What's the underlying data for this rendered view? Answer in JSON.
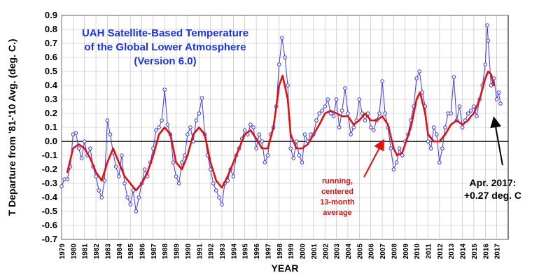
{
  "chart_data": {
    "type": "line",
    "title_lines": [
      "UAH Satellite-Based Temperature",
      "of the Global Lower Atmosphere",
      "(Version 6.0)"
    ],
    "ylabel": "T Departure from '81-'10 Avg. (deg. C.)",
    "xlabel": "YEAR",
    "ylim": [
      -0.7,
      0.9
    ],
    "yticks": [
      "0.9",
      "0.8",
      "0.7",
      "0.6",
      "0.5",
      "0.4",
      "0.3",
      "0.2",
      "0.1",
      "0.0",
      "-0.1",
      "-0.2",
      "-0.3",
      "-0.4",
      "-0.5",
      "-0.6",
      "-0.7"
    ],
    "xlim": [
      1979.0,
      2018.0
    ],
    "xticks": [
      "1979",
      "1980",
      "1981",
      "1982",
      "1983",
      "1984",
      "1985",
      "1986",
      "1987",
      "1988",
      "1989",
      "1990",
      "1991",
      "1992",
      "1993",
      "1994",
      "1995",
      "1996",
      "1997",
      "1998",
      "1999",
      "2000",
      "2001",
      "2002",
      "2003",
      "2004",
      "2005",
      "2006",
      "2007",
      "2008",
      "2009",
      "2010",
      "2011",
      "2012",
      "2013",
      "2014",
      "2015",
      "2016",
      "2017"
    ],
    "grid": true,
    "colors": {
      "monthly": "#3a3aee",
      "running": "#e01010",
      "title": "#1a33e6"
    },
    "series": [
      {
        "name": "",
        "values": [
          [
            1979.0,
            -0.32
          ],
          [
            1979.25,
            -0.27
          ],
          [
            1979.5,
            -0.27
          ],
          [
            1979.75,
            -0.18
          ],
          [
            1980.0,
            0.05
          ],
          [
            1980.25,
            0.06
          ],
          [
            1980.5,
            -0.05
          ],
          [
            1980.75,
            -0.12
          ],
          [
            1981.0,
            0.0
          ],
          [
            1981.25,
            -0.1
          ],
          [
            1981.5,
            -0.05
          ],
          [
            1981.75,
            -0.18
          ],
          [
            1982.0,
            -0.25
          ],
          [
            1982.25,
            -0.35
          ],
          [
            1982.5,
            -0.4
          ],
          [
            1982.75,
            -0.28
          ],
          [
            1983.0,
            0.15
          ],
          [
            1983.25,
            0.05
          ],
          [
            1983.5,
            -0.08
          ],
          [
            1983.75,
            -0.18
          ],
          [
            1984.0,
            -0.25
          ],
          [
            1984.25,
            -0.1
          ],
          [
            1984.5,
            -0.3
          ],
          [
            1984.75,
            -0.4
          ],
          [
            1985.0,
            -0.45
          ],
          [
            1985.25,
            -0.35
          ],
          [
            1985.5,
            -0.5
          ],
          [
            1985.75,
            -0.4
          ],
          [
            1986.0,
            -0.3
          ],
          [
            1986.25,
            -0.2
          ],
          [
            1986.5,
            -0.25
          ],
          [
            1986.75,
            -0.15
          ],
          [
            1987.0,
            -0.05
          ],
          [
            1987.25,
            0.08
          ],
          [
            1987.5,
            0.1
          ],
          [
            1987.75,
            0.15
          ],
          [
            1988.0,
            0.37
          ],
          [
            1988.25,
            0.12
          ],
          [
            1988.5,
            0.05
          ],
          [
            1988.75,
            -0.15
          ],
          [
            1989.0,
            -0.25
          ],
          [
            1989.25,
            -0.3
          ],
          [
            1989.5,
            -0.15
          ],
          [
            1989.75,
            -0.1
          ],
          [
            1990.0,
            0.05
          ],
          [
            1990.25,
            0.1
          ],
          [
            1990.5,
            0.0
          ],
          [
            1990.75,
            0.15
          ],
          [
            1991.0,
            0.2
          ],
          [
            1991.25,
            0.31
          ],
          [
            1991.5,
            0.05
          ],
          [
            1991.75,
            -0.1
          ],
          [
            1992.0,
            -0.2
          ],
          [
            1992.25,
            -0.3
          ],
          [
            1992.5,
            -0.35
          ],
          [
            1992.75,
            -0.4
          ],
          [
            1993.0,
            -0.45
          ],
          [
            1993.25,
            -0.3
          ],
          [
            1993.5,
            -0.28
          ],
          [
            1993.75,
            -0.2
          ],
          [
            1994.0,
            -0.25
          ],
          [
            1994.25,
            -0.1
          ],
          [
            1994.5,
            -0.05
          ],
          [
            1994.75,
            0.02
          ],
          [
            1995.0,
            0.08
          ],
          [
            1995.25,
            0.05
          ],
          [
            1995.5,
            0.12
          ],
          [
            1995.75,
            0.1
          ],
          [
            1996.0,
            -0.05
          ],
          [
            1996.25,
            0.05
          ],
          [
            1996.5,
            0.0
          ],
          [
            1996.75,
            -0.15
          ],
          [
            1997.0,
            -0.1
          ],
          [
            1997.25,
            0.05
          ],
          [
            1997.5,
            0.1
          ],
          [
            1997.75,
            0.25
          ],
          [
            1998.0,
            0.55
          ],
          [
            1998.25,
            0.74
          ],
          [
            1998.5,
            0.6
          ],
          [
            1998.75,
            0.4
          ],
          [
            1999.0,
            -0.05
          ],
          [
            1999.25,
            -0.12
          ],
          [
            1999.5,
            0.0
          ],
          [
            1999.75,
            -0.1
          ],
          [
            2000.0,
            -0.15
          ],
          [
            2000.25,
            0.05
          ],
          [
            2000.5,
            0.0
          ],
          [
            2000.75,
            0.05
          ],
          [
            2001.0,
            0.05
          ],
          [
            2001.25,
            0.15
          ],
          [
            2001.5,
            0.2
          ],
          [
            2001.75,
            0.22
          ],
          [
            2002.0,
            0.25
          ],
          [
            2002.25,
            0.3
          ],
          [
            2002.5,
            0.2
          ],
          [
            2002.75,
            0.18
          ],
          [
            2003.0,
            0.3
          ],
          [
            2003.25,
            0.1
          ],
          [
            2003.5,
            0.22
          ],
          [
            2003.75,
            0.38
          ],
          [
            2004.0,
            0.2
          ],
          [
            2004.25,
            0.05
          ],
          [
            2004.5,
            0.1
          ],
          [
            2004.75,
            0.15
          ],
          [
            2005.0,
            0.3
          ],
          [
            2005.25,
            0.2
          ],
          [
            2005.5,
            0.15
          ],
          [
            2005.75,
            0.2
          ],
          [
            2006.0,
            0.1
          ],
          [
            2006.25,
            0.08
          ],
          [
            2006.5,
            0.15
          ],
          [
            2006.75,
            0.2
          ],
          [
            2007.0,
            0.43
          ],
          [
            2007.25,
            0.2
          ],
          [
            2007.5,
            0.1
          ],
          [
            2007.75,
            -0.05
          ],
          [
            2008.0,
            -0.2
          ],
          [
            2008.25,
            -0.15
          ],
          [
            2008.5,
            -0.05
          ],
          [
            2008.75,
            -0.1
          ],
          [
            2009.0,
            0.0
          ],
          [
            2009.25,
            0.05
          ],
          [
            2009.5,
            0.15
          ],
          [
            2009.75,
            0.25
          ],
          [
            2010.0,
            0.45
          ],
          [
            2010.25,
            0.5
          ],
          [
            2010.5,
            0.35
          ],
          [
            2010.75,
            0.25
          ],
          [
            2011.0,
            0.0
          ],
          [
            2011.25,
            -0.05
          ],
          [
            2011.5,
            0.1
          ],
          [
            2011.75,
            0.05
          ],
          [
            2012.0,
            -0.15
          ],
          [
            2012.25,
            -0.05
          ],
          [
            2012.5,
            0.1
          ],
          [
            2012.75,
            0.2
          ],
          [
            2013.0,
            0.2
          ],
          [
            2013.25,
            0.46
          ],
          [
            2013.5,
            0.15
          ],
          [
            2013.75,
            0.25
          ],
          [
            2014.0,
            0.1
          ],
          [
            2014.25,
            0.15
          ],
          [
            2014.5,
            0.2
          ],
          [
            2014.75,
            0.22
          ],
          [
            2015.0,
            0.25
          ],
          [
            2015.25,
            0.18
          ],
          [
            2015.5,
            0.3
          ],
          [
            2015.75,
            0.4
          ],
          [
            2016.0,
            0.55
          ],
          [
            2016.17,
            0.83
          ],
          [
            2016.25,
            0.72
          ],
          [
            2016.5,
            0.4
          ],
          [
            2016.75,
            0.45
          ],
          [
            2017.0,
            0.3
          ],
          [
            2017.17,
            0.35
          ],
          [
            2017.33,
            0.27
          ]
        ]
      },
      {
        "name": "running, centered 13-month average",
        "values": [
          [
            1979.5,
            -0.22
          ],
          [
            1980.0,
            -0.05
          ],
          [
            1980.5,
            -0.02
          ],
          [
            1981.0,
            -0.05
          ],
          [
            1981.5,
            -0.12
          ],
          [
            1982.0,
            -0.22
          ],
          [
            1982.5,
            -0.28
          ],
          [
            1983.0,
            -0.15
          ],
          [
            1983.5,
            -0.05
          ],
          [
            1984.0,
            -0.15
          ],
          [
            1984.5,
            -0.25
          ],
          [
            1985.0,
            -0.3
          ],
          [
            1985.5,
            -0.35
          ],
          [
            1986.0,
            -0.3
          ],
          [
            1986.5,
            -0.22
          ],
          [
            1987.0,
            -0.1
          ],
          [
            1987.5,
            0.05
          ],
          [
            1988.0,
            0.1
          ],
          [
            1988.5,
            0.05
          ],
          [
            1989.0,
            -0.15
          ],
          [
            1989.5,
            -0.2
          ],
          [
            1990.0,
            -0.1
          ],
          [
            1990.5,
            0.05
          ],
          [
            1991.0,
            0.1
          ],
          [
            1991.5,
            0.05
          ],
          [
            1992.0,
            -0.15
          ],
          [
            1992.5,
            -0.28
          ],
          [
            1993.0,
            -0.33
          ],
          [
            1993.5,
            -0.25
          ],
          [
            1994.0,
            -0.15
          ],
          [
            1994.5,
            -0.05
          ],
          [
            1995.0,
            0.05
          ],
          [
            1995.5,
            0.08
          ],
          [
            1996.0,
            0.02
          ],
          [
            1996.5,
            -0.05
          ],
          [
            1997.0,
            -0.05
          ],
          [
            1997.5,
            0.1
          ],
          [
            1998.0,
            0.4
          ],
          [
            1998.3,
            0.47
          ],
          [
            1998.75,
            0.3
          ],
          [
            1999.0,
            0.05
          ],
          [
            1999.5,
            -0.05
          ],
          [
            2000.0,
            -0.05
          ],
          [
            2000.5,
            -0.02
          ],
          [
            2001.0,
            0.05
          ],
          [
            2001.5,
            0.12
          ],
          [
            2002.0,
            0.2
          ],
          [
            2002.5,
            0.22
          ],
          [
            2003.0,
            0.2
          ],
          [
            2003.5,
            0.18
          ],
          [
            2004.0,
            0.18
          ],
          [
            2004.5,
            0.12
          ],
          [
            2005.0,
            0.15
          ],
          [
            2005.5,
            0.2
          ],
          [
            2006.0,
            0.15
          ],
          [
            2006.5,
            0.15
          ],
          [
            2007.0,
            0.18
          ],
          [
            2007.5,
            0.12
          ],
          [
            2008.0,
            -0.05
          ],
          [
            2008.3,
            -0.1
          ],
          [
            2008.75,
            -0.08
          ],
          [
            2009.0,
            -0.02
          ],
          [
            2009.5,
            0.1
          ],
          [
            2010.0,
            0.3
          ],
          [
            2010.3,
            0.35
          ],
          [
            2010.75,
            0.2
          ],
          [
            2011.0,
            0.05
          ],
          [
            2011.5,
            0.0
          ],
          [
            2012.0,
            0.0
          ],
          [
            2012.5,
            0.05
          ],
          [
            2013.0,
            0.12
          ],
          [
            2013.5,
            0.15
          ],
          [
            2014.0,
            0.12
          ],
          [
            2014.5,
            0.15
          ],
          [
            2014.75,
            0.18
          ],
          [
            2015.0,
            0.2
          ],
          [
            2015.5,
            0.3
          ],
          [
            2016.0,
            0.45
          ],
          [
            2016.25,
            0.5
          ],
          [
            2016.5,
            0.48
          ],
          [
            2016.75,
            0.4
          ]
        ]
      }
    ],
    "annotations": {
      "running_label": [
        "running,",
        "centered",
        "13-month",
        "average"
      ],
      "callout": [
        "Apr. 2017:",
        "+0.27 deg. C"
      ]
    }
  }
}
